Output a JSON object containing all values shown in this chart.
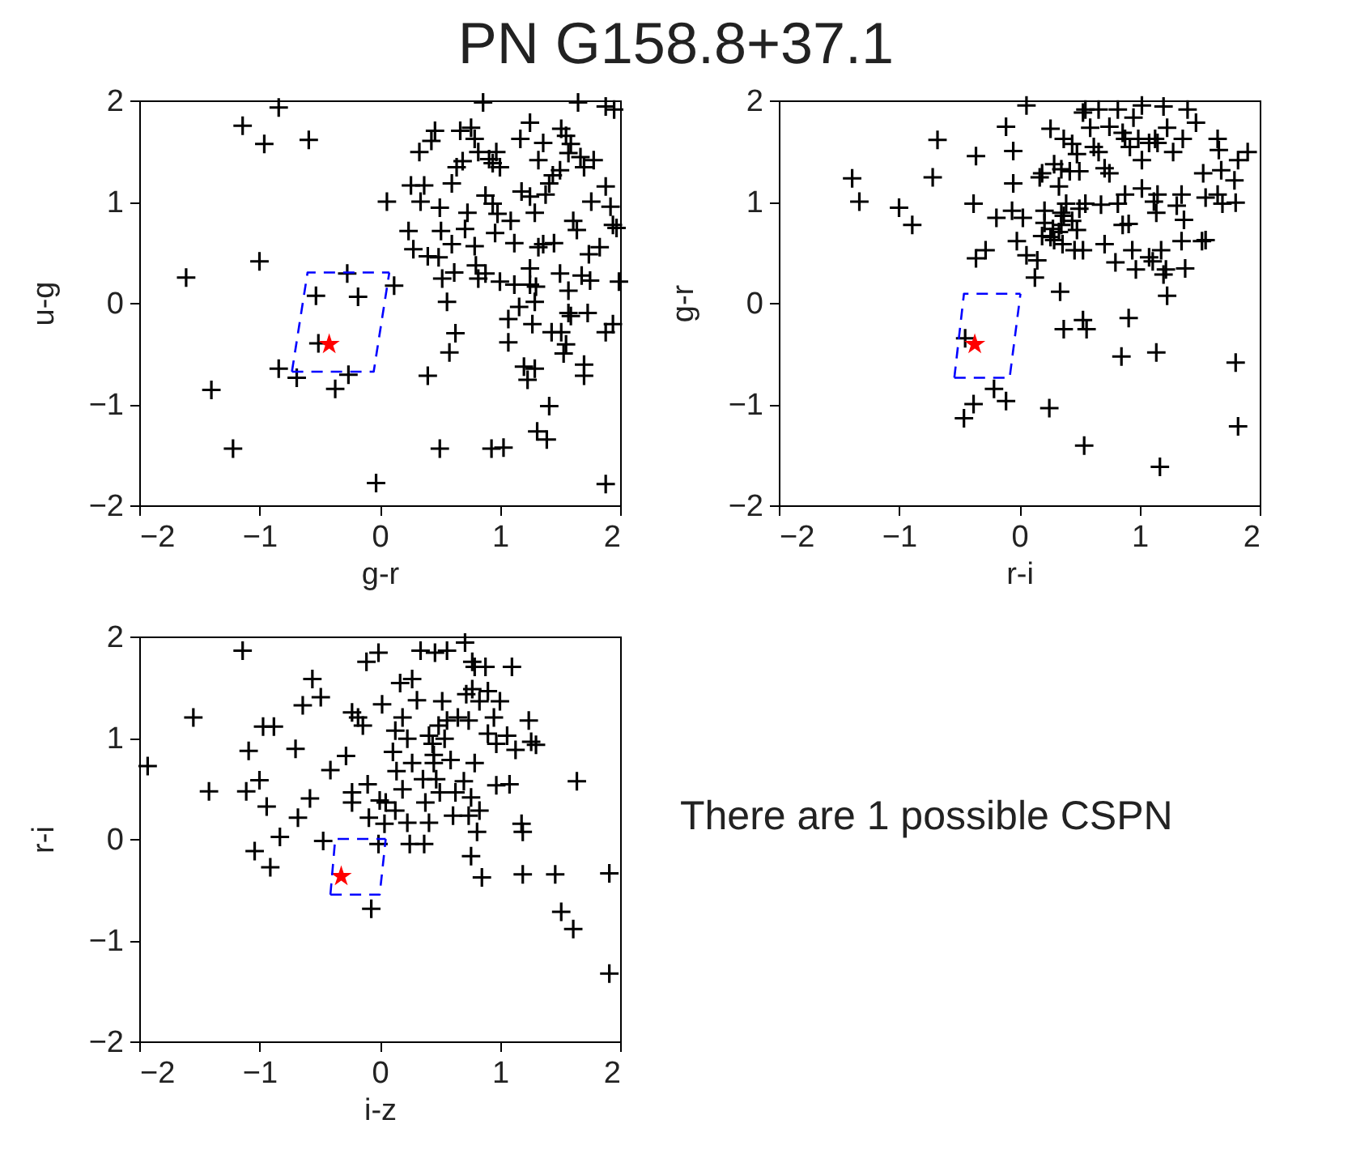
{
  "chart_data": [
    {
      "type": "scatter",
      "title": "PN G158.8+37.1",
      "xlabel": "g-r",
      "ylabel": "u-g",
      "xlim": [
        -2,
        2
      ],
      "ylim": [
        -2,
        2
      ],
      "xticks": [
        -2,
        -1,
        0,
        1,
        2
      ],
      "yticks": [
        -2,
        -1,
        0,
        1,
        2
      ],
      "grid": false,
      "series": [
        {
          "color": "#000000",
          "marker": "cross",
          "x": [
            -1.61,
            -1.14,
            -0.84,
            -0.96,
            -0.59,
            -1.0,
            -1.4,
            -1.22,
            -0.84,
            -0.69,
            -0.53,
            -0.27,
            -0.18,
            -0.51,
            -0.37,
            -0.26,
            -0.03,
            0.12,
            0.06,
            0.24,
            0.26,
            0.37,
            0.34,
            0.28,
            0.33,
            0.43,
            0.46,
            0.4,
            0.49,
            0.5,
            0.51,
            0.52,
            0.56,
            0.58,
            0.63,
            0.4,
            0.5,
            0.6,
            0.62,
            0.6,
            0.64,
            0.69,
            0.67,
            0.76,
            0.79,
            0.73,
            0.71,
            0.79,
            0.8,
            0.82,
            0.88,
            0.91,
            0.94,
            0.97,
            1.0,
            0.88,
            0.94,
            0.98,
            0.96,
            1.09,
            1.12,
            1.0,
            1.12,
            1.16,
            1.07,
            1.07,
            0.93,
            1.03,
            1.2,
            1.23,
            1.29,
            1.27,
            1.29,
            1.25,
            1.32,
            1.25,
            1.3,
            1.17,
            1.25,
            1.36,
            1.32,
            1.18,
            1.25,
            1.29,
            1.38,
            1.41,
            1.36,
            1.41,
            1.31,
            1.39,
            1.45,
            1.5,
            1.43,
            1.51,
            1.53,
            1.55,
            1.57,
            1.59,
            1.57,
            1.5,
            1.51,
            1.55,
            1.59,
            1.57,
            1.61,
            1.64,
            1.68,
            1.75,
            1.73,
            1.7,
            1.7,
            1.67,
            1.7,
            1.78,
            1.65,
            1.76,
            1.83,
            1.74,
            1.88,
            1.92,
            1.94,
            1.97,
            1.99,
            1.88,
            1.94,
            1.88,
            1.88,
            1.95,
            0.86,
            0.82,
            1.44
          ],
          "values": [
            0.25,
            1.75,
            1.93,
            1.57,
            1.61,
            0.41,
            -0.86,
            -1.44,
            -0.65,
            -0.74,
            0.07,
            0.29,
            0.06,
            -0.4,
            -0.85,
            -0.71,
            -1.78,
            0.17,
            1.0,
            0.71,
            1.16,
            1.16,
            1.0,
            0.53,
            1.49,
            1.6,
            1.7,
            0.46,
            0.45,
            0.94,
            0.71,
            0.24,
            0.01,
            -0.49,
            -0.3,
            -0.72,
            -1.44,
            0.58,
            0.3,
            1.18,
            1.34,
            1.4,
            1.7,
            1.73,
            1.62,
            0.89,
            0.73,
            0.56,
            0.37,
            0.24,
            0.29,
            1.42,
            1.38,
            1.49,
            1.34,
            1.06,
            0.98,
            0.88,
            0.69,
            0.81,
            0.59,
            0.21,
            0.18,
            -0.04,
            -0.16,
            -0.39,
            -1.44,
            -1.43,
            -0.63,
            -0.76,
            -0.65,
            -0.21,
            0.01,
            0.34,
            0.55,
            0.18,
            0.16,
            1.62,
            1.78,
            1.58,
            1.41,
            1.1,
            1.05,
            0.89,
            1.07,
            1.18,
            0.58,
            -1.02,
            -1.27,
            -1.35,
            0.59,
            0.29,
            -0.29,
            -0.29,
            -0.5,
            -0.41,
            -0.1,
            -0.13,
            0.12,
            1.31,
            1.72,
            1.65,
            1.57,
            1.48,
            0.81,
            0.72,
            0.27,
            0.22,
            -0.1,
            -0.61,
            -0.72,
            1.44,
            1.34,
            1.41,
            1.98,
            1.0,
            0.55,
            0.48,
            1.15,
            0.95,
            0.77,
            0.74,
            0.21,
            -0.29,
            -0.21,
            -1.79,
            1.94,
            1.91,
            1.98,
            1.49,
            1.26
          ]
        },
        {
          "color": "#ff0000",
          "marker": "star",
          "x": [
            -0.42
          ],
          "values": [
            -0.41
          ]
        },
        {
          "type": "line",
          "color": "#0000ff",
          "line_style": "dashed",
          "marker": "none",
          "x": [
            -0.73,
            -0.6,
            0.08
          ],
          "values": [
            -0.68,
            0.3,
            0.3
          ]
        },
        {
          "type": "line",
          "color": "#0000ff",
          "line_style": "dashed",
          "marker": "none",
          "x": [
            -0.73,
            -0.05,
            0.08
          ],
          "values": [
            -0.68,
            -0.68,
            0.3
          ]
        }
      ]
    },
    {
      "type": "scatter",
      "xlabel": "r-i",
      "ylabel": "g-r",
      "xlim": [
        -2,
        2
      ],
      "ylim": [
        -2,
        2
      ],
      "xticks": [
        -2,
        -1,
        0,
        1,
        2
      ],
      "yticks": [
        -2,
        -1,
        0,
        1,
        2
      ],
      "grid": false,
      "series": [
        {
          "color": "#000000",
          "marker": "cross",
          "x": [
            -1.39,
            -1.33,
            -1.0,
            -0.89,
            -0.72,
            -0.68,
            -0.36,
            -0.38,
            -0.36,
            -0.28,
            -0.19,
            -0.11,
            -0.05,
            -0.05,
            -0.06,
            0.03,
            -0.02,
            0.06,
            0.15,
            0.13,
            0.06,
            -0.45,
            -0.21,
            -0.11,
            -0.38,
            -0.46,
            0.34,
            0.37,
            0.53,
            0.56,
            0.25,
            0.54,
            0.85,
            0.91,
            1.14,
            1.17,
            1.23,
            1.2,
            1.22,
            1.38,
            1.8,
            1.82,
            0.17,
            0.19,
            0.26,
            0.29,
            0.33,
            0.35,
            0.37,
            0.42,
            0.44,
            0.48,
            0.5,
            0.53,
            0.55,
            0.59,
            0.62,
            0.66,
            0.71,
            0.75,
            0.66,
            0.75,
            0.82,
            0.86,
            0.88,
            0.92,
            0.95,
            0.99,
            1.02,
            1.02,
            1.08,
            1.13,
            1.15,
            1.2,
            1.23,
            1.28,
            1.36,
            1.4,
            1.47,
            1.53,
            1.65,
            1.66,
            1.68,
            1.79,
            1.82,
            1.9,
            1.55,
            1.65,
            1.69,
            1.8,
            1.52,
            1.55,
            1.35,
            1.35,
            1.31,
            1.37,
            1.15,
            1.12,
            1.14,
            1.02,
            0.88,
            0.82,
            0.86,
            0.91,
            0.71,
            0.8,
            0.94,
            0.97,
            1.08,
            1.11,
            1.18,
            0.68,
            0.55,
            0.5,
            0.46,
            0.53,
            0.35,
            0.37,
            0.35,
            0.33,
            0.28,
            0.21,
            0.21,
            0.19,
            0.26,
            0.36,
            0.29,
            0.44,
            0.48,
            0.39
          ],
          "values": [
            1.23,
            1.0,
            0.94,
            0.77,
            1.24,
            1.61,
            1.45,
            0.98,
            0.44,
            0.52,
            0.84,
            1.74,
            1.5,
            1.18,
            0.91,
            0.84,
            0.61,
            0.47,
            0.42,
            0.25,
            1.95,
            -0.35,
            -0.85,
            -0.97,
            -1.0,
            -1.14,
            0.11,
            -0.26,
            -0.17,
            -0.26,
            -1.04,
            -1.41,
            -0.53,
            -0.15,
            -0.49,
            -1.62,
            0.07,
            0.28,
            0.33,
            0.34,
            -0.59,
            -1.22,
            1.24,
            1.28,
            1.72,
            1.37,
            1.15,
            1.32,
            1.62,
            1.3,
            1.57,
            1.47,
            1.3,
            1.88,
            1.91,
            1.73,
            1.54,
            1.49,
            1.33,
            1.28,
            1.91,
            1.74,
            1.91,
            1.68,
            1.62,
            1.54,
            1.83,
            1.62,
            1.41,
            1.95,
            1.58,
            1.62,
            1.58,
            1.94,
            1.73,
            1.49,
            1.62,
            1.91,
            1.78,
            1.28,
            1.62,
            1.51,
            1.31,
            1.21,
            1.41,
            1.49,
            1.04,
            1.07,
            0.98,
            0.99,
            0.61,
            0.62,
            0.61,
            1.07,
            0.96,
            0.82,
            1.07,
            1.0,
            0.89,
            1.13,
            1.07,
            0.98,
            0.77,
            0.78,
            0.58,
            0.4,
            0.52,
            0.33,
            0.45,
            0.41,
            0.52,
            0.97,
            0.98,
            0.93,
            0.52,
            0.52,
            0.89,
            0.86,
            0.77,
            0.7,
            0.73,
            0.91,
            0.79,
            0.66,
            0.65,
            0.58,
            0.62,
            0.81,
            0.72,
            0.98
          ]
        },
        {
          "color": "#ff0000",
          "marker": "star",
          "x": [
            -0.37
          ],
          "values": [
            -0.41
          ]
        },
        {
          "type": "line",
          "color": "#0000ff",
          "line_style": "dashed",
          "marker": "none",
          "x": [
            -0.54,
            -0.46,
            0.01
          ],
          "values": [
            -0.74,
            0.09,
            0.09
          ]
        },
        {
          "type": "line",
          "color": "#0000ff",
          "line_style": "dashed",
          "marker": "none",
          "x": [
            -0.54,
            -0.08,
            0.01
          ],
          "values": [
            -0.74,
            -0.74,
            0.09
          ]
        }
      ]
    },
    {
      "type": "scatter",
      "xlabel": "i-z",
      "ylabel": "r-i",
      "xlim": [
        -2,
        2
      ],
      "ylim": [
        -2,
        2
      ],
      "xticks": [
        -2,
        -1,
        0,
        1,
        2
      ],
      "yticks": [
        -2,
        -1,
        0,
        1,
        2
      ],
      "grid": false,
      "series": [
        {
          "color": "#000000",
          "marker": "cross",
          "x": [
            -1.93,
            -1.55,
            -1.42,
            -1.14,
            -1.09,
            -1.11,
            -1.0,
            -0.94,
            -0.97,
            -0.88,
            -1.04,
            -0.91,
            -0.83,
            -0.7,
            -0.68,
            -0.64,
            -0.56,
            -0.58,
            -0.49,
            -0.47,
            -0.41,
            -0.28,
            -0.23,
            -0.18,
            -0.14,
            -0.23,
            -0.23,
            -0.11,
            -0.01,
            0.02,
            -0.1,
            -0.09,
            -0.01,
            -0.07,
            0.0,
            0.05,
            0.04,
            0.13,
            0.11,
            0.14,
            0.13,
            0.19,
            0.19,
            0.23,
            0.17,
            0.27,
            0.23,
            0.25,
            0.37,
            0.31,
            0.27,
            0.34,
            0.46,
            0.56,
            0.36,
            0.38,
            0.41,
            0.41,
            0.44,
            0.45,
            0.47,
            0.5,
            0.52,
            0.49,
            0.54,
            0.56,
            0.59,
            0.61,
            0.63,
            0.65,
            0.7,
            0.74,
            0.72,
            0.71,
            0.77,
            0.79,
            0.77,
            0.83,
            0.74,
            0.79,
            0.76,
            0.83,
            0.81,
            0.76,
            0.85,
            0.88,
            0.9,
            0.95,
            0.9,
            0.97,
            1.0,
            0.97,
            1.08,
            1.06,
            1.13,
            1.1,
            1.24,
            1.26,
            1.3,
            1.18,
            1.19,
            1.19,
            1.46,
            1.51,
            1.61,
            1.64,
            1.91,
            1.91,
            0.45
          ],
          "values": [
            0.72,
            1.2,
            0.47,
            1.86,
            0.87,
            0.47,
            0.58,
            0.32,
            1.11,
            1.11,
            -0.12,
            -0.28,
            0.02,
            0.89,
            0.21,
            1.32,
            1.58,
            0.4,
            1.4,
            -0.02,
            0.68,
            0.82,
            1.25,
            1.2,
            1.12,
            0.46,
            0.36,
            1.75,
            1.84,
            1.33,
            0.54,
            0.21,
            -0.05,
            -0.69,
            0.38,
            0.36,
            0.15,
            1.07,
            0.86,
            0.67,
            0.28,
            0.49,
            1.2,
            0.99,
            1.54,
            1.58,
            0.16,
            -0.05,
            -0.05,
            1.37,
            0.75,
            1.86,
            1.84,
            1.86,
            0.59,
            0.36,
            0.16,
            1.02,
            0.94,
            0.83,
            0.59,
            0.46,
            1.36,
            1.12,
            0.99,
            1.17,
            0.78,
            0.23,
            0.46,
            1.2,
            0.57,
            0.23,
            1.43,
            1.94,
            1.75,
            1.7,
            1.48,
            1.36,
            1.17,
            0.75,
            0.41,
            0.28,
            0.07,
            -0.17,
            -0.38,
            1.7,
            1.46,
            1.2,
            1.04,
            0.94,
            1.36,
            0.53,
            0.54,
            1.02,
            0.88,
            1.7,
            1.17,
            0.96,
            0.93,
            0.15,
            0.07,
            -0.35,
            -0.35,
            -0.72,
            -0.89,
            0.57,
            -0.34,
            -1.33,
            0.75
          ]
        },
        {
          "color": "#ff0000",
          "marker": "star",
          "x": [
            -0.32
          ],
          "values": [
            -0.37
          ]
        },
        {
          "type": "line",
          "color": "#0000ff",
          "line_style": "dashed",
          "marker": "none",
          "x": [
            -0.41,
            -0.37,
            0.05
          ],
          "values": [
            -0.55,
            0.0,
            0.0
          ]
        },
        {
          "type": "line",
          "color": "#0000ff",
          "line_style": "dashed",
          "marker": "none",
          "x": [
            -0.41,
            0.0,
            0.05
          ],
          "values": [
            -0.55,
            -0.55,
            0.0
          ]
        }
      ]
    },
    {
      "type": "other",
      "annotations": [
        "There are 1 possible CSPN"
      ]
    }
  ]
}
